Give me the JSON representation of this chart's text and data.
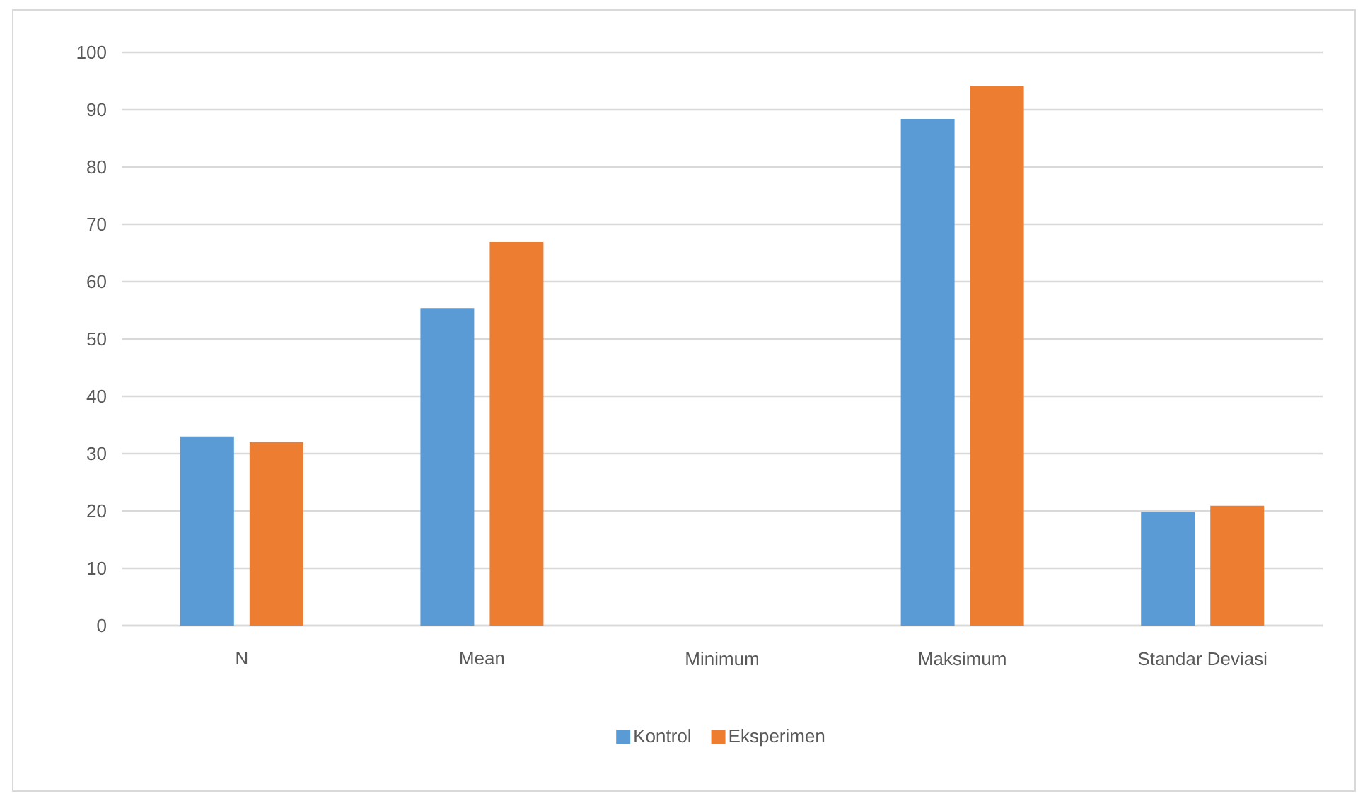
{
  "chart_data": {
    "type": "bar",
    "categories": [
      "N",
      "Mean",
      "Minimum",
      "Maksimum",
      "Standar Deviasi"
    ],
    "series": [
      {
        "name": "Kontrol",
        "color": "#5b9bd5",
        "values": [
          33,
          55.4,
          0,
          88.4,
          19.8
        ]
      },
      {
        "name": "Eksperimen",
        "color": "#ed7d31",
        "values": [
          32,
          66.9,
          0,
          94.2,
          20.9
        ]
      }
    ],
    "ylim": [
      0,
      100
    ],
    "yticks": [
      0,
      10,
      20,
      30,
      40,
      50,
      60,
      70,
      80,
      90,
      100
    ],
    "grid": "y",
    "legend": "bottom"
  }
}
